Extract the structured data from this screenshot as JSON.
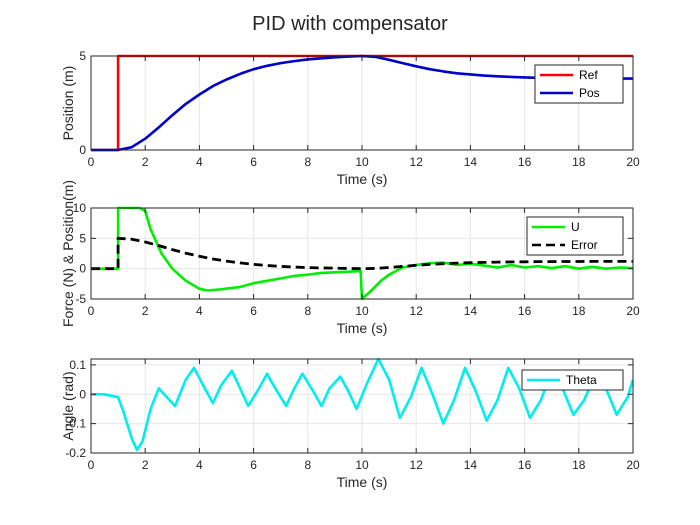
{
  "chart_data": {
    "type": "line",
    "title": "PID with compensator",
    "subplots": [
      {
        "xlabel": "Time (s)",
        "ylabel": "Position (m)",
        "xlim": [
          0,
          20
        ],
        "ylim": [
          0,
          5
        ],
        "xticks": [
          0,
          2,
          4,
          6,
          8,
          10,
          12,
          14,
          16,
          18,
          20
        ],
        "yticks": [
          0,
          5
        ],
        "grid": true,
        "legend_location": "top-right",
        "series": [
          {
            "name": "Ref",
            "color": "#ff0000",
            "x": [
              0,
              1,
              1,
              20
            ],
            "y": [
              0,
              0,
              5,
              5
            ]
          },
          {
            "name": "Pos",
            "color": "#0000cc",
            "x": [
              0,
              1,
              1.5,
              2,
              2.5,
              3,
              3.5,
              4,
              4.5,
              5,
              5.5,
              6,
              6.5,
              7,
              7.5,
              8,
              8.5,
              9,
              9.5,
              10,
              10.5,
              11,
              11.5,
              12,
              12.5,
              13,
              13.5,
              14,
              14.5,
              15,
              15.5,
              16,
              16.5,
              17,
              17.5,
              18,
              18.5,
              19,
              19.5,
              20
            ],
            "y": [
              0,
              0,
              0.15,
              0.6,
              1.2,
              1.85,
              2.45,
              2.95,
              3.4,
              3.75,
              4.05,
              4.3,
              4.48,
              4.62,
              4.73,
              4.82,
              4.88,
              4.93,
              4.97,
              5.0,
              4.95,
              4.8,
              4.62,
              4.45,
              4.3,
              4.18,
              4.08,
              4.02,
              3.96,
              3.92,
              3.89,
              3.86,
              3.84,
              3.83,
              3.82,
              3.82,
              3.81,
              3.81,
              3.8,
              3.8
            ]
          }
        ]
      },
      {
        "xlabel": "Time (s)",
        "ylabel": "Force (N) & Position(m)",
        "xlim": [
          0,
          20
        ],
        "ylim": [
          -5,
          10
        ],
        "xticks": [
          0,
          2,
          4,
          6,
          8,
          10,
          12,
          14,
          16,
          18,
          20
        ],
        "yticks": [
          -5,
          0,
          5,
          10
        ],
        "grid": true,
        "legend_location": "top-right",
        "series": [
          {
            "name": "U",
            "color": "#00ee00",
            "dash": "solid",
            "x": [
              0,
              1,
              1,
              1.3,
              1.8,
              2.0,
              2.2,
              2.6,
              3.0,
              3.5,
              4.0,
              4.3,
              4.8,
              5.5,
              6.0,
              6.5,
              7.0,
              7.5,
              8.0,
              8.5,
              9.0,
              9.5,
              9.95,
              10.0,
              10.3,
              10.7,
              11.0,
              11.5,
              12.0,
              12.5,
              13.0,
              13.5,
              14.0,
              14.5,
              15.0,
              15.5,
              16.0,
              16.5,
              17.0,
              17.5,
              18.0,
              18.5,
              19.0,
              19.5,
              20.0
            ],
            "y": [
              0,
              0,
              10,
              10,
              10,
              9.5,
              6.5,
              2.5,
              0,
              -2,
              -3.3,
              -3.6,
              -3.4,
              -3.0,
              -2.4,
              -2.0,
              -1.6,
              -1.2,
              -1.0,
              -0.7,
              -0.6,
              -0.5,
              -0.4,
              -5.0,
              -3.8,
              -2.0,
              -1.0,
              0.2,
              0.6,
              0.9,
              1.0,
              0.6,
              0.8,
              0.5,
              0.2,
              0.6,
              0.2,
              0.4,
              0.1,
              0.4,
              0.0,
              0.3,
              0.0,
              0.2,
              0.1
            ]
          },
          {
            "name": "Error",
            "color": "#000000",
            "dash": "dashed",
            "x": [
              0,
              1,
              1,
              1.5,
              2,
              2.5,
              3,
              3.5,
              4,
              4.5,
              5,
              5.5,
              6,
              6.5,
              7,
              7.5,
              8,
              8.5,
              9,
              9.5,
              10,
              10.5,
              11,
              11.5,
              12,
              12.5,
              13,
              13.5,
              14,
              14.5,
              15,
              15.5,
              16,
              16.5,
              17,
              17.5,
              18,
              18.5,
              19,
              19.5,
              20
            ],
            "y": [
              0,
              0,
              5,
              4.85,
              4.4,
              3.8,
              3.15,
              2.55,
              2.05,
              1.6,
              1.25,
              0.95,
              0.7,
              0.52,
              0.38,
              0.27,
              0.18,
              0.12,
              0.07,
              0.03,
              0.0,
              0.05,
              0.2,
              0.38,
              0.55,
              0.7,
              0.82,
              0.92,
              0.98,
              1.04,
              1.08,
              1.11,
              1.14,
              1.16,
              1.17,
              1.18,
              1.18,
              1.19,
              1.19,
              1.2,
              1.2
            ]
          }
        ]
      },
      {
        "xlabel": "Time (s)",
        "ylabel": "Angle (rad)",
        "xlim": [
          0,
          20
        ],
        "ylim": [
          -0.2,
          0.12
        ],
        "xticks": [
          0,
          2,
          4,
          6,
          8,
          10,
          12,
          14,
          16,
          18,
          20
        ],
        "yticks": [
          -0.2,
          -0.1,
          0,
          0.1
        ],
        "grid": true,
        "legend_location": "top-right",
        "series": [
          {
            "name": "Theta",
            "color": "#00eeee",
            "x": [
              0,
              0.5,
              1.0,
              1.2,
              1.5,
              1.7,
              1.9,
              2.2,
              2.5,
              2.8,
              3.1,
              3.5,
              3.8,
              4.2,
              4.5,
              4.8,
              5.2,
              5.5,
              5.8,
              6.2,
              6.5,
              6.8,
              7.2,
              7.5,
              7.8,
              8.2,
              8.5,
              8.8,
              9.2,
              9.5,
              9.8,
              10.2,
              10.6,
              11.0,
              11.4,
              11.8,
              12.2,
              12.6,
              13.0,
              13.4,
              13.8,
              14.2,
              14.6,
              15.0,
              15.4,
              15.8,
              16.2,
              16.6,
              17.0,
              17.4,
              17.8,
              18.2,
              18.6,
              19.0,
              19.4,
              19.8,
              20.0
            ],
            "y": [
              0,
              0,
              -0.01,
              -0.06,
              -0.15,
              -0.19,
              -0.16,
              -0.05,
              0.02,
              -0.01,
              -0.04,
              0.05,
              0.09,
              0.02,
              -0.03,
              0.03,
              0.08,
              0.02,
              -0.04,
              0.02,
              0.07,
              0.02,
              -0.04,
              0.02,
              0.07,
              0.01,
              -0.04,
              0.02,
              0.06,
              0.01,
              -0.05,
              0.04,
              0.12,
              0.05,
              -0.08,
              -0.01,
              0.09,
              0.0,
              -0.1,
              -0.02,
              0.09,
              0.01,
              -0.09,
              -0.02,
              0.09,
              0.02,
              -0.08,
              -0.02,
              0.08,
              0.02,
              -0.07,
              -0.02,
              0.07,
              0.02,
              -0.07,
              -0.01,
              0.05
            ]
          }
        ]
      }
    ]
  }
}
